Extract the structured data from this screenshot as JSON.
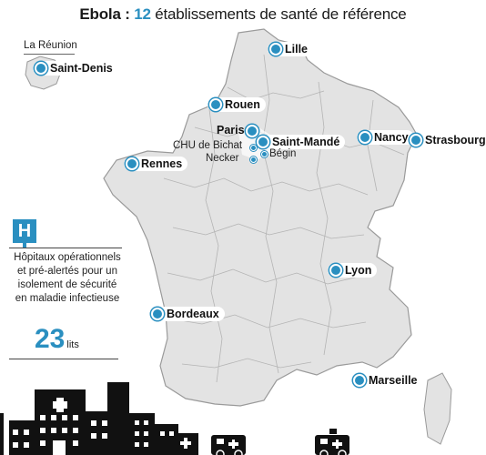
{
  "title": {
    "prefix": "Ebola : ",
    "count": "12",
    "rest": " établissements de santé de référence"
  },
  "reunion": {
    "label": "La Réunion"
  },
  "cities": [
    {
      "name": "Saint-Denis"
    },
    {
      "name": "Lille"
    },
    {
      "name": "Rouen"
    },
    {
      "name": "Paris"
    },
    {
      "name": "Saint-Mandé"
    },
    {
      "name": "Nancy"
    },
    {
      "name": "Strasbourg"
    },
    {
      "name": "Rennes"
    },
    {
      "name": "Lyon"
    },
    {
      "name": "Bordeaux"
    },
    {
      "name": "Marseille"
    }
  ],
  "paris_sub": {
    "chu": "CHU de Bichat",
    "necker": "Necker",
    "begin": "Bégin"
  },
  "sidebar": {
    "text": "Hôpitaux opérationnels et pré-alertés pour un isolement de sécurité en maladie infectieuse",
    "beds_number": "23",
    "beds_unit": "lits"
  },
  "colors": {
    "accent": "#2a8fc0",
    "map_fill": "#e3e3e3",
    "map_border": "#999999",
    "sea_land": "#dcdcdc",
    "buildings": "#111111"
  },
  "icons": {
    "hospital": "hospital-h-icon",
    "marker": "location-dot-icon"
  }
}
